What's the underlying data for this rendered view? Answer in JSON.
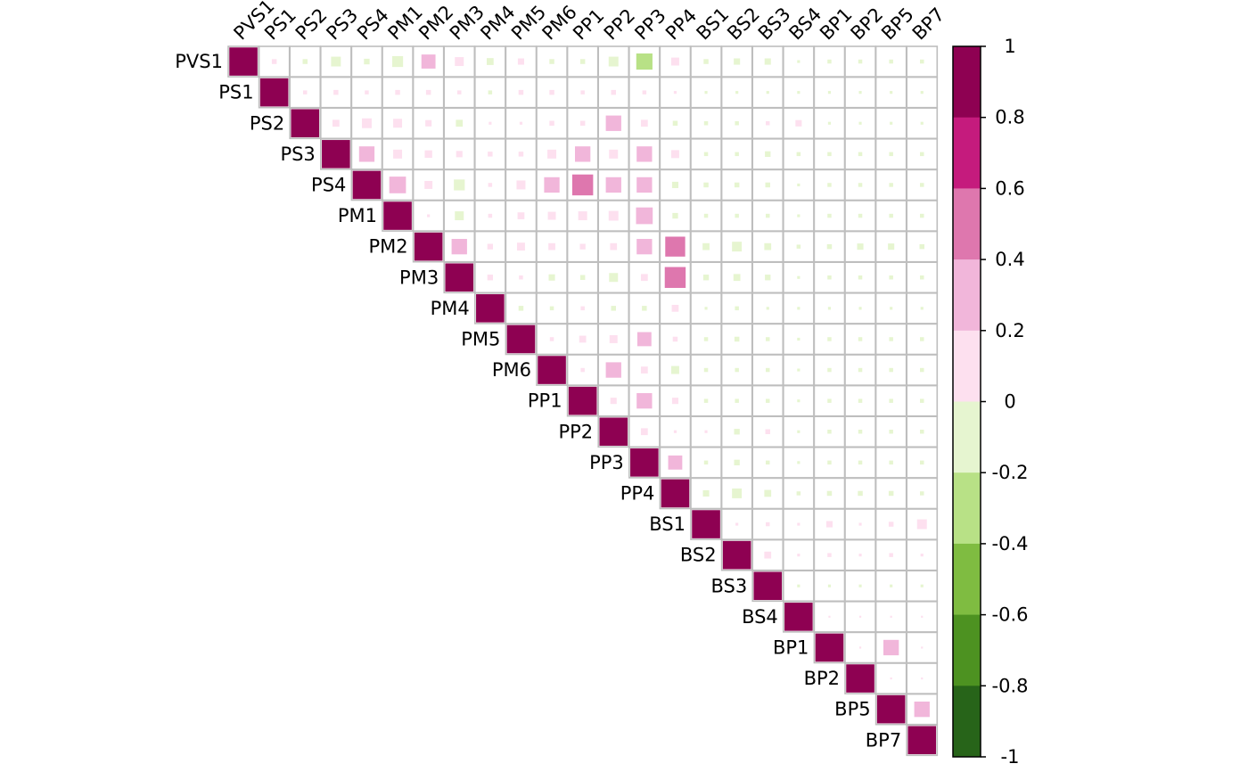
{
  "chart_data": {
    "type": "heatmap",
    "shape": "upper-triangle",
    "marker": "square-sized-by-abs-value",
    "variables": [
      "PVS1",
      "PS1",
      "PS2",
      "PS3",
      "PS4",
      "PM1",
      "PM2",
      "PM3",
      "PM4",
      "PM5",
      "PM6",
      "PP1",
      "PP2",
      "PP3",
      "PP4",
      "BS1",
      "BS2",
      "BS3",
      "BS4",
      "BP1",
      "BP2",
      "BP5",
      "BP7"
    ],
    "correlations": [
      [
        1,
        0.03,
        -0.03,
        -0.12,
        -0.04,
        -0.15,
        0.25,
        0.1,
        -0.06,
        0.05,
        -0.03,
        -0.03,
        -0.12,
        -0.33,
        0.08,
        -0.03,
        -0.05,
        -0.05,
        -0.01,
        -0.02,
        -0.02,
        -0.02,
        -0.02
      ],
      [
        null,
        1,
        0.02,
        0.03,
        0.02,
        0.03,
        0.03,
        0.02,
        -0.02,
        0.03,
        0.03,
        0.02,
        0.03,
        0.02,
        0.01,
        -0.01,
        -0.01,
        -0.01,
        -0.01,
        -0.01,
        -0.01,
        -0.01,
        -0.01
      ],
      [
        null,
        null,
        1,
        0.06,
        0.12,
        0.1,
        0.05,
        -0.06,
        0.01,
        0.01,
        0.03,
        0.03,
        0.3,
        0.06,
        -0.03,
        -0.02,
        -0.02,
        0.02,
        0.05,
        -0.01,
        -0.01,
        -0.01,
        -0.01
      ],
      [
        null,
        null,
        null,
        1,
        0.3,
        0.1,
        0.07,
        0.05,
        0.03,
        0.03,
        0.1,
        0.3,
        0.1,
        0.3,
        0.08,
        -0.02,
        -0.02,
        -0.04,
        -0.02,
        -0.02,
        -0.02,
        -0.02,
        -0.02
      ],
      [
        null,
        null,
        null,
        null,
        1,
        0.35,
        0.08,
        -0.15,
        0.02,
        0.1,
        0.3,
        0.55,
        0.3,
        0.3,
        -0.05,
        -0.03,
        -0.03,
        -0.03,
        -0.01,
        -0.02,
        -0.02,
        -0.02,
        -0.02
      ],
      [
        null,
        null,
        null,
        null,
        null,
        1,
        0.01,
        -0.1,
        0.02,
        0.06,
        0.08,
        0.1,
        0.12,
        0.35,
        -0.04,
        -0.02,
        -0.02,
        -0.02,
        -0.01,
        -0.02,
        -0.02,
        -0.02,
        -0.02
      ],
      [
        null,
        null,
        null,
        null,
        null,
        null,
        1,
        0.3,
        0.04,
        0.08,
        0.06,
        0.04,
        0.06,
        0.3,
        0.5,
        -0.06,
        -0.12,
        -0.06,
        -0.02,
        -0.03,
        -0.05,
        -0.05,
        -0.03
      ],
      [
        null,
        null,
        null,
        null,
        null,
        null,
        null,
        1,
        0.04,
        0.02,
        -0.05,
        -0.03,
        -0.1,
        0.06,
        0.55,
        -0.04,
        -0.06,
        -0.04,
        -0.01,
        -0.02,
        -0.02,
        -0.02,
        -0.02
      ],
      [
        null,
        null,
        null,
        null,
        null,
        null,
        null,
        null,
        1,
        -0.03,
        -0.02,
        0.02,
        -0.03,
        -0.03,
        0.06,
        -0.01,
        -0.02,
        -0.01,
        -0.01,
        -0.01,
        -0.01,
        -0.01,
        -0.01
      ],
      [
        null,
        null,
        null,
        null,
        null,
        null,
        null,
        null,
        null,
        1,
        0.02,
        0.06,
        0.08,
        0.25,
        0.03,
        -0.02,
        -0.03,
        -0.02,
        -0.01,
        -0.02,
        -0.02,
        -0.02,
        -0.02
      ],
      [
        null,
        null,
        null,
        null,
        null,
        null,
        null,
        null,
        null,
        null,
        1,
        0.02,
        0.3,
        0.06,
        -0.08,
        -0.02,
        -0.02,
        -0.02,
        -0.01,
        -0.02,
        -0.02,
        -0.02,
        -0.02
      ],
      [
        null,
        null,
        null,
        null,
        null,
        null,
        null,
        null,
        null,
        null,
        null,
        1,
        0.05,
        0.3,
        0.05,
        -0.02,
        -0.02,
        -0.02,
        -0.01,
        -0.02,
        -0.02,
        -0.02,
        -0.02
      ],
      [
        null,
        null,
        null,
        null,
        null,
        null,
        null,
        null,
        null,
        null,
        null,
        null,
        1,
        0.06,
        0.01,
        0.01,
        -0.04,
        0.03,
        -0.01,
        -0.02,
        -0.02,
        -0.02,
        -0.02
      ],
      [
        null,
        null,
        null,
        null,
        null,
        null,
        null,
        null,
        null,
        null,
        null,
        null,
        null,
        1,
        0.25,
        -0.02,
        -0.04,
        -0.02,
        -0.01,
        -0.02,
        -0.02,
        -0.02,
        -0.02
      ],
      [
        null,
        null,
        null,
        null,
        null,
        null,
        null,
        null,
        null,
        null,
        null,
        null,
        null,
        null,
        1,
        -0.05,
        -0.12,
        -0.06,
        -0.02,
        -0.03,
        -0.03,
        -0.03,
        -0.02
      ],
      [
        null,
        null,
        null,
        null,
        null,
        null,
        null,
        null,
        null,
        null,
        null,
        null,
        null,
        null,
        null,
        1,
        0.01,
        0.02,
        0.01,
        0.05,
        0.01,
        0.03,
        0.12
      ],
      [
        null,
        null,
        null,
        null,
        null,
        null,
        null,
        null,
        null,
        null,
        null,
        null,
        null,
        null,
        null,
        null,
        1,
        0.06,
        0.01,
        0.02,
        0.01,
        0.02,
        0.01
      ],
      [
        null,
        null,
        null,
        null,
        null,
        null,
        null,
        null,
        null,
        null,
        null,
        null,
        null,
        null,
        null,
        null,
        null,
        1,
        -0.01,
        -0.01,
        -0.01,
        -0.01,
        -0.01
      ],
      [
        null,
        null,
        null,
        null,
        null,
        null,
        null,
        null,
        null,
        null,
        null,
        null,
        null,
        null,
        null,
        null,
        null,
        null,
        1,
        0.0,
        0.0,
        0.0,
        0.0
      ],
      [
        null,
        null,
        null,
        null,
        null,
        null,
        null,
        null,
        null,
        null,
        null,
        null,
        null,
        null,
        null,
        null,
        null,
        null,
        null,
        1,
        0.0,
        0.3,
        0.0
      ],
      [
        null,
        null,
        null,
        null,
        null,
        null,
        null,
        null,
        null,
        null,
        null,
        null,
        null,
        null,
        null,
        null,
        null,
        null,
        null,
        null,
        1,
        0.0,
        0.0
      ],
      [
        null,
        null,
        null,
        null,
        null,
        null,
        null,
        null,
        null,
        null,
        null,
        null,
        null,
        null,
        null,
        null,
        null,
        null,
        null,
        null,
        null,
        1,
        0.3
      ],
      [
        null,
        null,
        null,
        null,
        null,
        null,
        null,
        null,
        null,
        null,
        null,
        null,
        null,
        null,
        null,
        null,
        null,
        null,
        null,
        null,
        null,
        null,
        1
      ]
    ],
    "colorbar": {
      "ticks": [
        "1",
        "0.8",
        "0.6",
        "0.4",
        "0.2",
        "0",
        "-0.2",
        "-0.4",
        "-0.6",
        "-0.8",
        "-1"
      ],
      "bins": [
        {
          "from": 0.8,
          "to": 1.0,
          "color": "#8E0152"
        },
        {
          "from": 0.6,
          "to": 0.8,
          "color": "#C51B7D"
        },
        {
          "from": 0.4,
          "to": 0.6,
          "color": "#DE77AE"
        },
        {
          "from": 0.2,
          "to": 0.4,
          "color": "#F1B6DA"
        },
        {
          "from": 0.0,
          "to": 0.2,
          "color": "#FDE0EF"
        },
        {
          "from": -0.2,
          "to": 0.0,
          "color": "#E6F5D0"
        },
        {
          "from": -0.4,
          "to": -0.2,
          "color": "#B8E186"
        },
        {
          "from": -0.6,
          "to": -0.4,
          "color": "#7FBC41"
        },
        {
          "from": -0.8,
          "to": -0.6,
          "color": "#4D9221"
        },
        {
          "from": -1.0,
          "to": -0.8,
          "color": "#276419"
        }
      ]
    },
    "grid_color": "#BEBEBE",
    "xlim": [
      -1,
      1
    ]
  }
}
